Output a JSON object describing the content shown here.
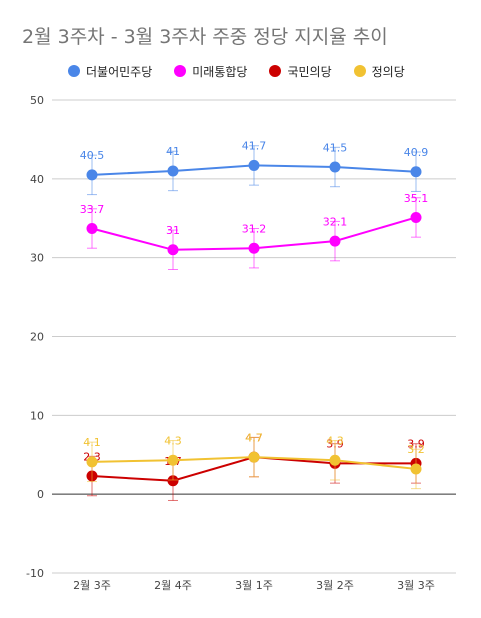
{
  "chart_data": {
    "type": "line",
    "title": "2월 3주차 - 3월 3주차 주중 정당 지지율 추이",
    "categories": [
      "2월 3주",
      "2월 4주",
      "3월 1주",
      "3월 2주",
      "3월 3주"
    ],
    "ylim": [
      -10,
      50
    ],
    "yticks": [
      -10,
      0,
      10,
      20,
      30,
      40,
      50
    ],
    "grid": true,
    "legend": "top-left",
    "series": [
      {
        "name": "더불어민주당",
        "color": "#4a86e8",
        "values": [
          40.5,
          41,
          41.7,
          41.5,
          40.9
        ],
        "error": [
          2.5,
          2.5,
          2.5,
          2.5,
          2.5
        ]
      },
      {
        "name": "미래통합당",
        "color": "#ff00ff",
        "values": [
          33.7,
          31,
          31.2,
          32.1,
          35.1
        ],
        "error": [
          2.5,
          2.5,
          2.5,
          2.5,
          2.5
        ]
      },
      {
        "name": "국민의당",
        "color": "#cc0000",
        "values": [
          2.3,
          1.7,
          4.7,
          3.9,
          3.9
        ],
        "error": [
          2.5,
          2.5,
          2.5,
          2.5,
          2.5
        ]
      },
      {
        "name": "정의당",
        "color": "#f1c232",
        "values": [
          4.1,
          4.3,
          4.7,
          4.3,
          3.2
        ],
        "error": [
          2.5,
          2.5,
          2.5,
          2.5,
          2.5
        ]
      }
    ]
  }
}
